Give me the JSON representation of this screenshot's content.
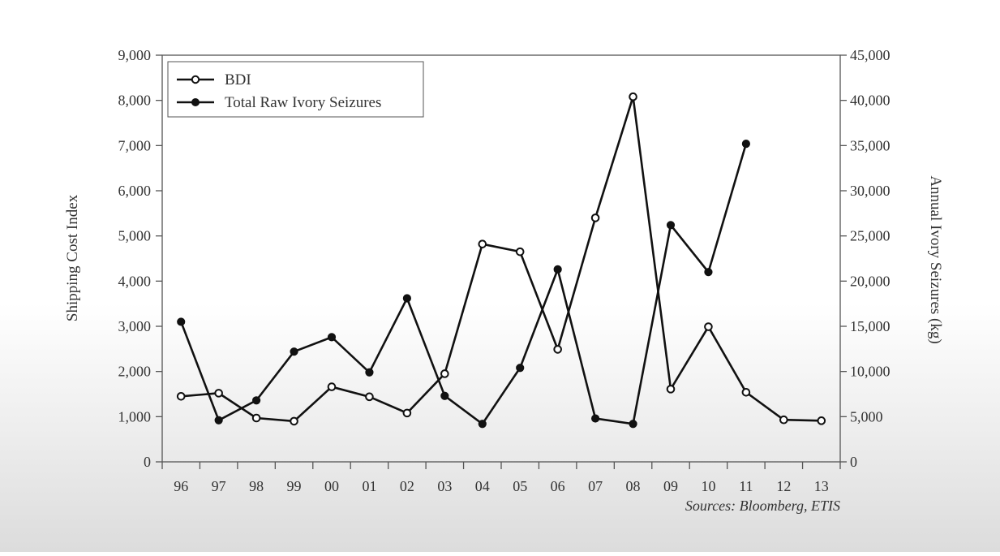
{
  "chart_data": {
    "type": "line",
    "categories": [
      "96",
      "97",
      "98",
      "99",
      "00",
      "01",
      "02",
      "03",
      "04",
      "05",
      "06",
      "07",
      "08",
      "09",
      "10",
      "11",
      "12",
      "13"
    ],
    "series": [
      {
        "name": "BDI",
        "axis": "left",
        "marker": "open-circle",
        "values": [
          1450,
          1520,
          970,
          900,
          1660,
          1440,
          1080,
          1950,
          4820,
          4650,
          2490,
          5400,
          8080,
          1610,
          2990,
          1540,
          930,
          910
        ]
      },
      {
        "name": "Total Raw Ivory Seizures",
        "axis": "right",
        "marker": "filled-circle",
        "values": [
          15500,
          4600,
          6800,
          12200,
          13800,
          9900,
          18100,
          7300,
          4200,
          10400,
          21300,
          4800,
          4200,
          26200,
          21000,
          35200,
          null,
          null
        ]
      }
    ],
    "ylabel": "Shipping Cost Index",
    "y2label": "Annual Ivory Seizures (kg)",
    "ylim": [
      0,
      9000
    ],
    "y2lim": [
      0,
      45000
    ],
    "yticks": [
      "0",
      "1,000",
      "2,000",
      "3,000",
      "4,000",
      "5,000",
      "6,000",
      "7,000",
      "8,000",
      "9,000"
    ],
    "y2ticks": [
      "0",
      "5,000",
      "10,000",
      "15,000",
      "20,000",
      "25,000",
      "30,000",
      "35,000",
      "40,000",
      "45,000"
    ],
    "legend_position": "top-left",
    "grid": false,
    "source_note": "Sources: Bloomberg, ETIS"
  },
  "colors": {
    "line": "#111111",
    "axis": "#555555",
    "text": "#333333"
  }
}
